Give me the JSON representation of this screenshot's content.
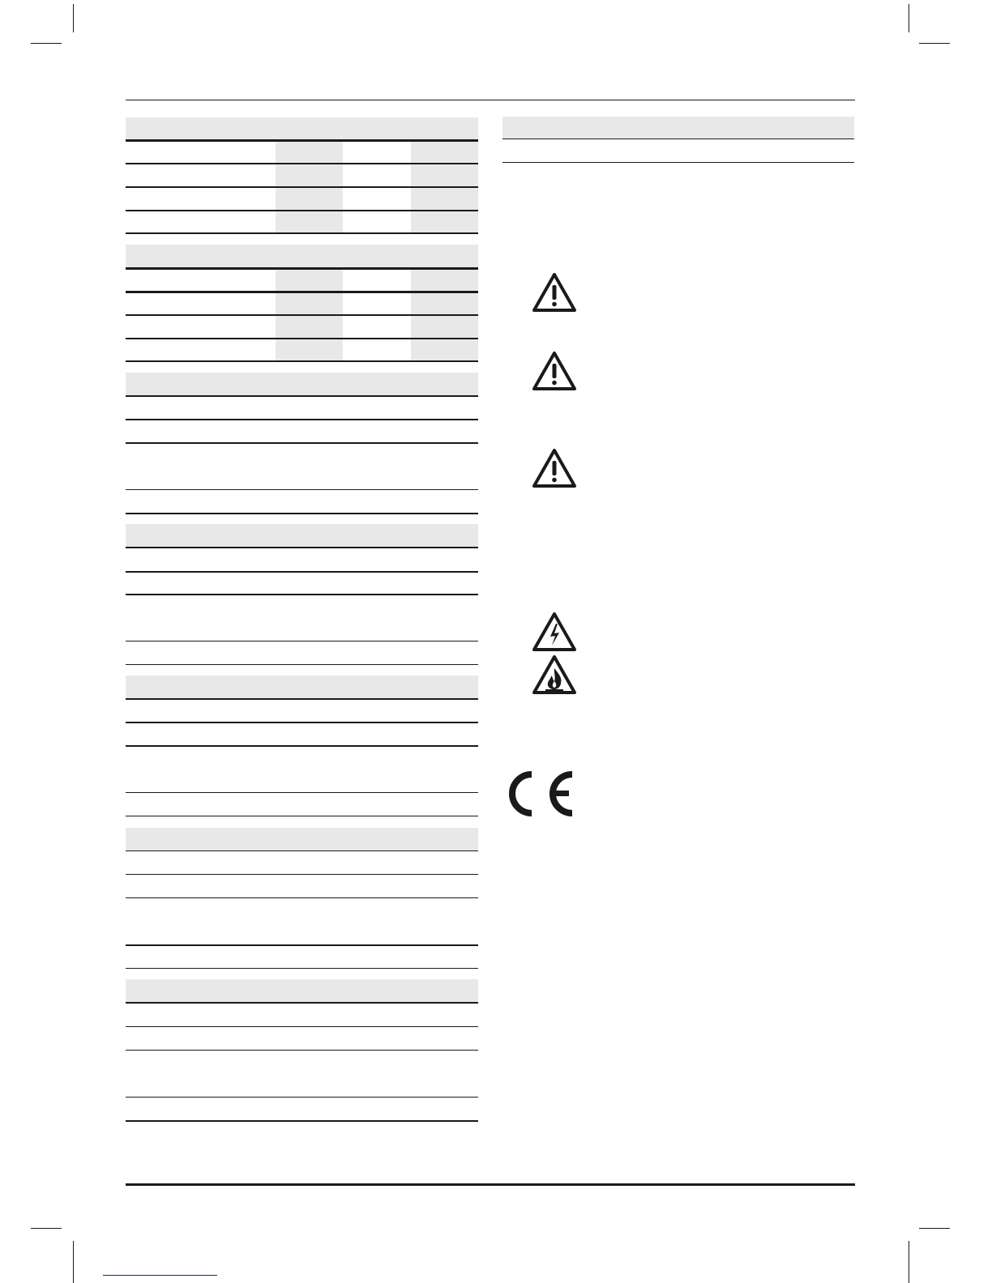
{
  "document": {
    "tables_left": 7,
    "icons": [
      "warning-icon",
      "warning-icon",
      "warning-icon",
      "electric-shock-warning-icon",
      "fire-warning-icon",
      "ce-mark-icon"
    ],
    "colors": {
      "header_fill": "#e8e8e8",
      "rule": "#1a1a1a",
      "link_underline": "#1a1aa0"
    }
  }
}
